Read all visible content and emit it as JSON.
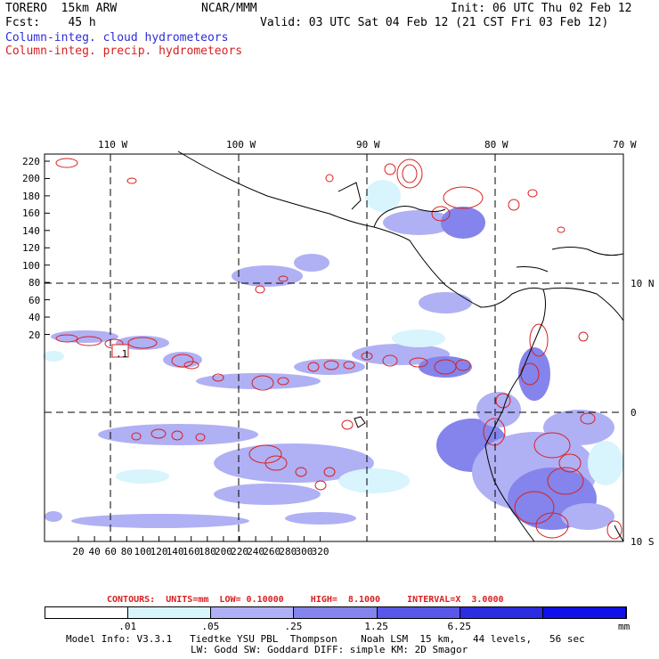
{
  "header": {
    "model": "TORERO  15km ARW",
    "forecast_hour": "Fcst:    45 h",
    "center": "NCAR/MMM",
    "init": "Init: 06 UTC Thu 02 Feb 12",
    "valid": "Valid: 03 UTC Sat 04 Feb 12 (21 CST Fri 03 Feb 12)",
    "field1": "Column-integ. cloud hydrometeors",
    "field2": "Column-integ. precip. hydrometeors"
  },
  "colors": {
    "cloud_field": "#2d2dd8",
    "precip_field": "#d82020",
    "coastline": "#000000",
    "grid": "#000000"
  },
  "map": {
    "lon_labels": [
      "110 W",
      "100 W",
      "90 W",
      "80 W",
      "70 W"
    ],
    "lat_labels": [
      "10 N",
      "0",
      "10 S"
    ],
    "grid_x_ticks": [
      "20",
      "40",
      "60",
      "80",
      "100",
      "120",
      "140",
      "160",
      "180",
      "200",
      "220",
      "240",
      "260",
      "280",
      "300",
      "320"
    ],
    "grid_y_ticks": [
      "220",
      "200",
      "180",
      "160",
      "140",
      "120",
      "100",
      "80",
      "60",
      "40",
      "20"
    ],
    "annotation": ".1"
  },
  "contours": {
    "line": "CONTOURS:  UNITS=mm  LOW= 0.10000     HIGH=  8.1000     INTERVAL=X  3.0000"
  },
  "colorbar": {
    "labels": [
      ".01",
      ".05",
      ".25",
      "1.25",
      "6.25"
    ],
    "unit": "mm",
    "fills": [
      "#ffffff",
      "#d8f4fc",
      "#b0b0f4",
      "#8484ec",
      "#5858e8",
      "#2c2ce0",
      "#1010e8"
    ]
  },
  "footer": {
    "line1": "Model Info: V3.3.1   Tiedtke YSU PBL  Thompson    Noah LSM  15 km,   44 levels,   56 sec",
    "line2": "LW: Godd SW: Goddard DIFF: simple KM: 2D Smagor"
  }
}
